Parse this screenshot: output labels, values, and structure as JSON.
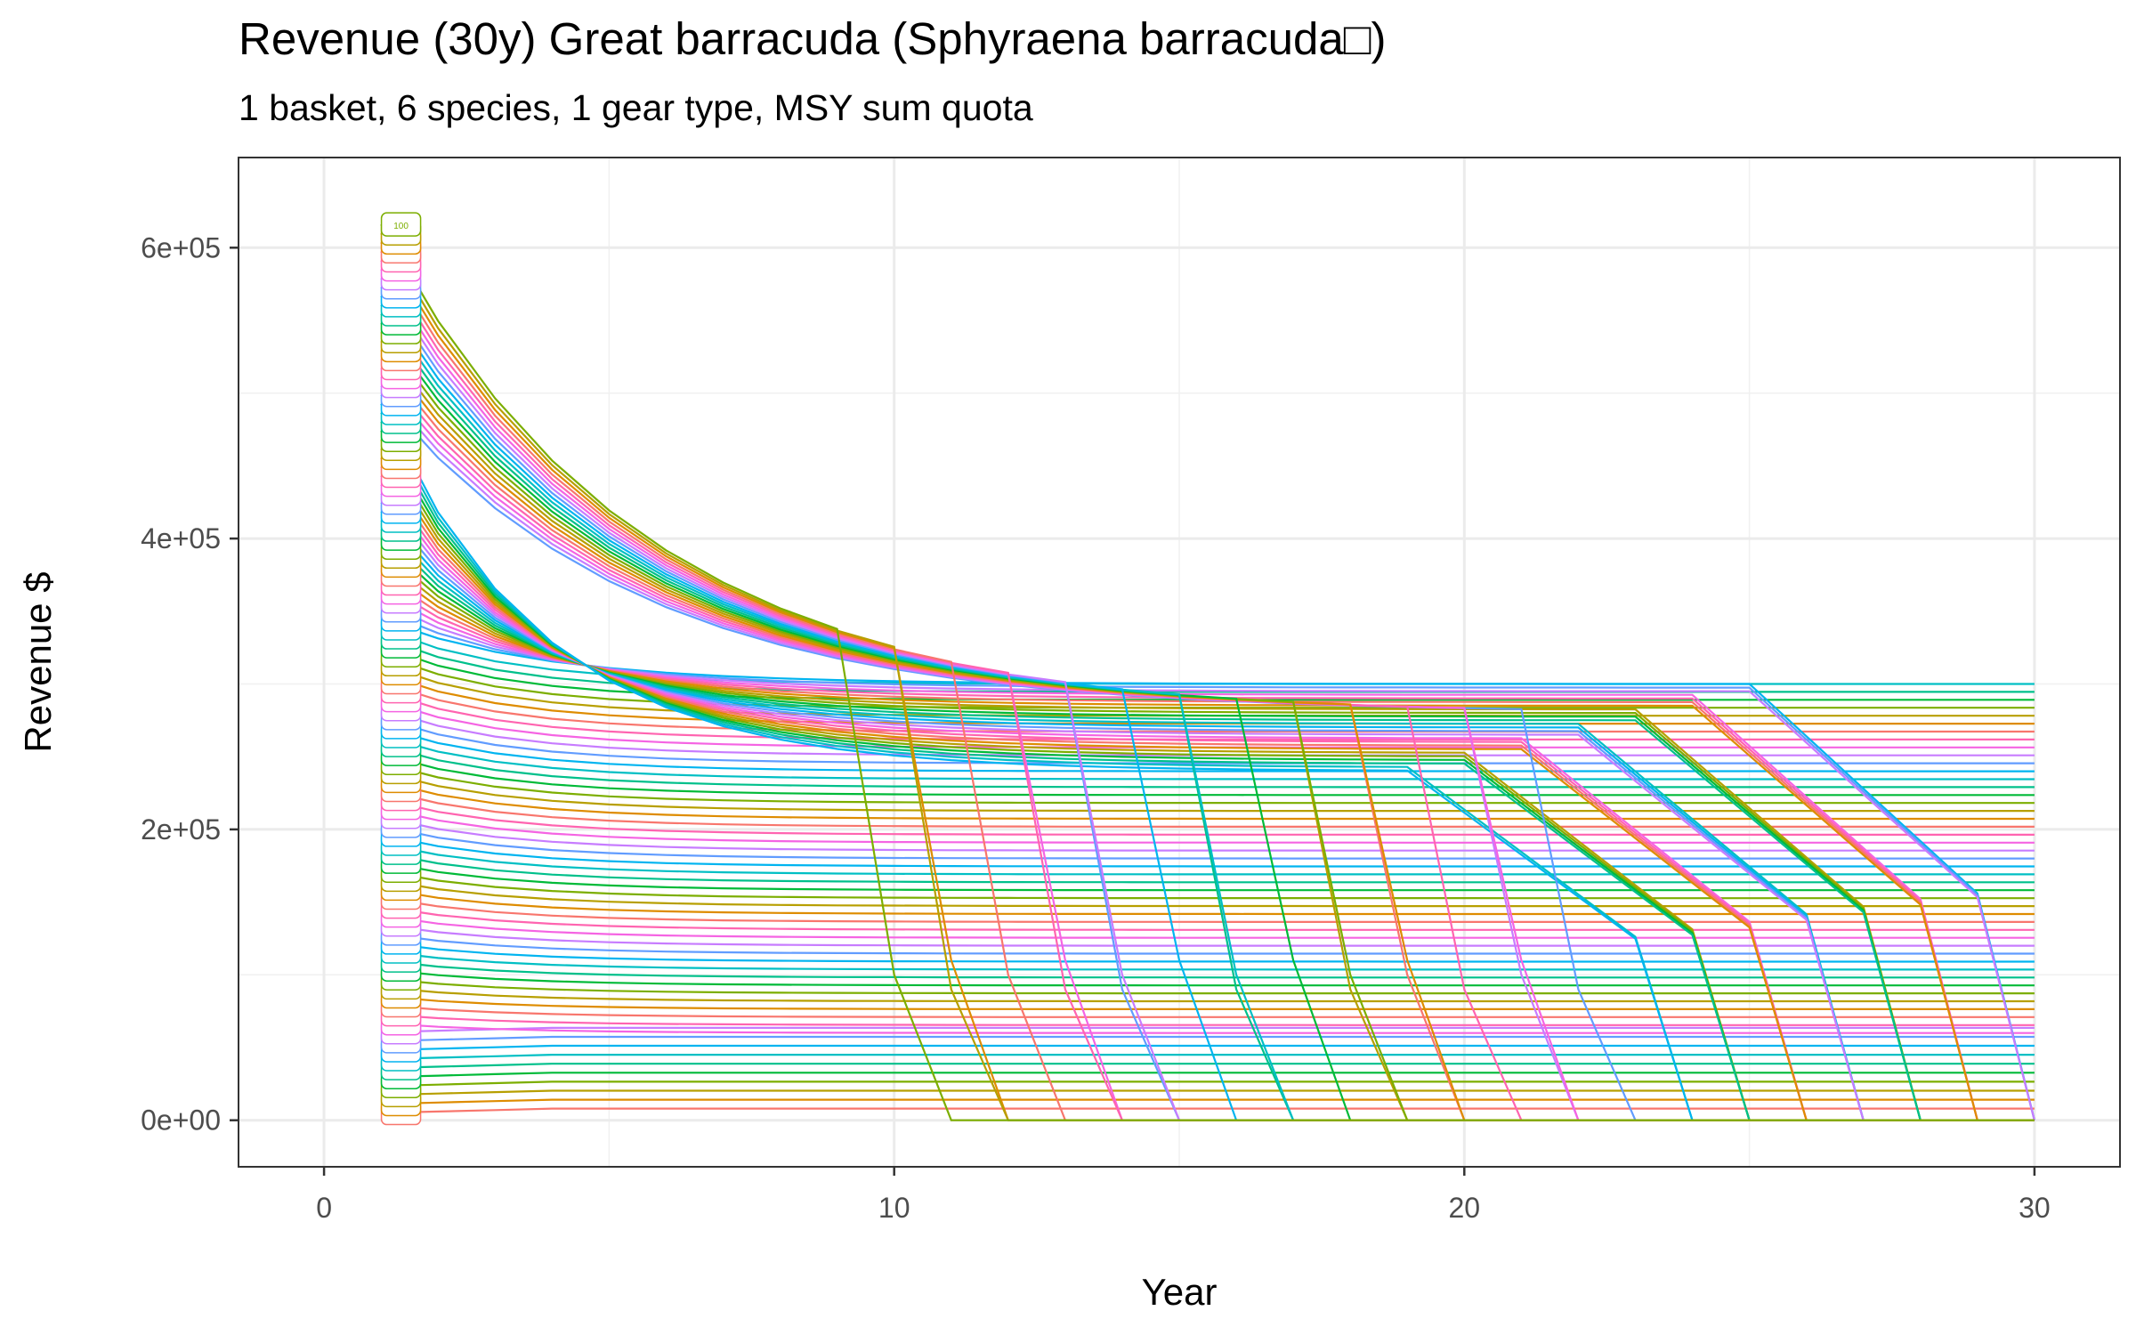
{
  "chart_data": {
    "type": "line",
    "title": "Revenue (30y) Great barracuda (Sphyraena barracuda□)",
    "subtitle": "1 basket, 6 species, 1 gear type, MSY sum quota",
    "xlabel": "Year",
    "ylabel": "Revenue $",
    "xlim": [
      -1.5,
      31.5
    ],
    "ylim": [
      -32000,
      662000
    ],
    "x_ticks": [
      0,
      10,
      20,
      30
    ],
    "x_tick_labels": [
      "0",
      "10",
      "20",
      "30"
    ],
    "y_ticks": [
      0,
      200000,
      400000,
      600000
    ],
    "y_tick_labels": [
      "0e+00",
      "2e+05",
      "4e+05",
      "6e+05"
    ],
    "grid": true,
    "legend": "none",
    "series_count": 100,
    "line_label_visible": "100",
    "palette_hue_start": 15,
    "palette_hue_end": 375,
    "series_colors_note_start": "#F8766D",
    "series_rule_start_values_range": [
      5000,
      616000
    ],
    "series_rule_groups": [
      {
        "from": 1,
        "to": 10,
        "shape": "flat",
        "end_value_range": [
          5000,
          55000
        ]
      },
      {
        "from": 11,
        "to": 55,
        "shape": "approach_equilibrium",
        "end_value_range": [
          60000,
          300000
        ]
      },
      {
        "from": 56,
        "to": 80,
        "shape": "approach_then_decline",
        "collapse_year_range": [
          30,
          24
        ]
      },
      {
        "from": 81,
        "to": 100,
        "shape": "decline_then_collapse",
        "collapse_year_range": [
          23,
          11
        ]
      }
    ]
  }
}
